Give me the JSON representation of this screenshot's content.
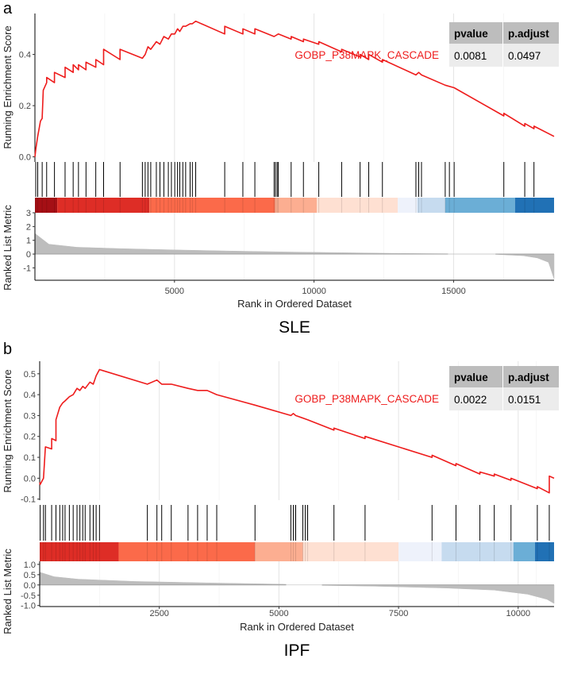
{
  "chart_data": [
    {
      "type": "line",
      "panel_label": "a",
      "title": "SLE",
      "gene_set": "GOBP_P38MAPK_CASCADE",
      "xlabel": "Rank in Ordered Dataset",
      "ylabel_top": "Running Enrichment Score",
      "ylabel_bottom": "Ranked List Metric",
      "xlim": [
        0,
        18600
      ],
      "x_ticks": [
        5000,
        10000,
        15000
      ],
      "x_tick_labels": [
        "5000",
        "10000",
        "15000"
      ],
      "es_ylim": [
        -0.02,
        0.56
      ],
      "es_ticks": [
        0.0,
        0.2,
        0.4
      ],
      "es_tick_labels": [
        "0.0",
        "0.2",
        "0.4"
      ],
      "metric_ylim": [
        -1.9,
        3.0
      ],
      "metric_ticks": [
        3,
        2,
        1,
        0,
        -1
      ],
      "metric_tick_labels": [
        "3",
        "2",
        "1",
        "0",
        "-1"
      ],
      "table": {
        "headers": [
          "pvalue",
          "p.adjust"
        ],
        "values": [
          "0.0081",
          "0.0497"
        ]
      },
      "line_color": "#ee1c1c",
      "hit_ranks": [
        30,
        100,
        260,
        420,
        700,
        1080,
        1370,
        1560,
        1830,
        2180,
        2460,
        3050,
        3850,
        3950,
        4050,
        4150,
        4350,
        4480,
        4620,
        4780,
        4890,
        5010,
        5110,
        5190,
        5300,
        5400,
        5560,
        5640,
        5760,
        6800,
        7450,
        7880,
        8570,
        8620,
        8680,
        8720,
        9180,
        9620,
        10170,
        10990,
        11650,
        11960,
        12450,
        13650,
        13750,
        13850,
        14700,
        14850,
        15020,
        16800,
        17550,
        17880
      ],
      "es_curve": [
        [
          0,
          0.0
        ],
        [
          30,
          0.03
        ],
        [
          100,
          0.08
        ],
        [
          200,
          0.14
        ],
        [
          260,
          0.15
        ],
        [
          300,
          0.26
        ],
        [
          420,
          0.29
        ],
        [
          420,
          0.31
        ],
        [
          700,
          0.29
        ],
        [
          700,
          0.33
        ],
        [
          1080,
          0.31
        ],
        [
          1080,
          0.35
        ],
        [
          1370,
          0.33
        ],
        [
          1370,
          0.36
        ],
        [
          1560,
          0.34
        ],
        [
          1560,
          0.36
        ],
        [
          1830,
          0.34
        ],
        [
          1830,
          0.37
        ],
        [
          2180,
          0.35
        ],
        [
          2180,
          0.38
        ],
        [
          2460,
          0.36
        ],
        [
          2460,
          0.42
        ],
        [
          3050,
          0.38
        ],
        [
          3050,
          0.42
        ],
        [
          3850,
          0.385
        ],
        [
          3950,
          0.4
        ],
        [
          4050,
          0.43
        ],
        [
          4150,
          0.42
        ],
        [
          4350,
          0.45
        ],
        [
          4480,
          0.44
        ],
        [
          4620,
          0.47
        ],
        [
          4780,
          0.46
        ],
        [
          4890,
          0.48
        ],
        [
          5010,
          0.48
        ],
        [
          5110,
          0.5
        ],
        [
          5190,
          0.49
        ],
        [
          5300,
          0.51
        ],
        [
          5400,
          0.51
        ],
        [
          5560,
          0.52
        ],
        [
          5640,
          0.52
        ],
        [
          5760,
          0.53
        ],
        [
          6800,
          0.48
        ],
        [
          6800,
          0.51
        ],
        [
          7450,
          0.48
        ],
        [
          7450,
          0.5
        ],
        [
          7880,
          0.48
        ],
        [
          7880,
          0.5
        ],
        [
          8570,
          0.47
        ],
        [
          8720,
          0.48
        ],
        [
          9180,
          0.46
        ],
        [
          9180,
          0.47
        ],
        [
          9620,
          0.45
        ],
        [
          9620,
          0.46
        ],
        [
          10170,
          0.44
        ],
        [
          10170,
          0.45
        ],
        [
          10990,
          0.41
        ],
        [
          10990,
          0.42
        ],
        [
          11650,
          0.39
        ],
        [
          11650,
          0.4
        ],
        [
          11960,
          0.38
        ],
        [
          11960,
          0.4
        ],
        [
          12450,
          0.37
        ],
        [
          12450,
          0.38
        ],
        [
          13650,
          0.32
        ],
        [
          13750,
          0.33
        ],
        [
          13850,
          0.32
        ],
        [
          14700,
          0.28
        ],
        [
          15020,
          0.27
        ],
        [
          16800,
          0.16
        ],
        [
          16800,
          0.17
        ],
        [
          17550,
          0.12
        ],
        [
          17550,
          0.13
        ],
        [
          17880,
          0.11
        ],
        [
          17880,
          0.12
        ],
        [
          18600,
          0.08
        ]
      ],
      "metric_curve": [
        [
          0,
          1.5
        ],
        [
          500,
          0.72
        ],
        [
          1500,
          0.5
        ],
        [
          3000,
          0.4
        ],
        [
          5000,
          0.3
        ],
        [
          7000,
          0.22
        ],
        [
          9000,
          0.15
        ],
        [
          11000,
          0.1
        ],
        [
          13000,
          0.05
        ],
        [
          14800,
          0.02
        ],
        [
          14800,
          0.0
        ],
        [
          16500,
          0.0
        ],
        [
          16500,
          -0.02
        ],
        [
          17500,
          -0.12
        ],
        [
          18000,
          -0.28
        ],
        [
          18400,
          -0.6
        ],
        [
          18600,
          -1.8
        ]
      ],
      "metric_gap": [
        14800,
        16500
      ],
      "color_bands": [
        {
          "start": 0,
          "end": 800,
          "color": "#a50f15"
        },
        {
          "start": 800,
          "end": 4100,
          "color": "#de2d26"
        },
        {
          "start": 4100,
          "end": 8600,
          "color": "#fb6a4a"
        },
        {
          "start": 8600,
          "end": 10100,
          "color": "#fcae91"
        },
        {
          "start": 10100,
          "end": 13000,
          "color": "#fee0d2"
        },
        {
          "start": 13000,
          "end": 13700,
          "color": "#eef2fb"
        },
        {
          "start": 13700,
          "end": 14700,
          "color": "#c6dbef"
        },
        {
          "start": 14700,
          "end": 17200,
          "color": "#6baed6"
        },
        {
          "start": 17200,
          "end": 18600,
          "color": "#2171b5"
        }
      ]
    },
    {
      "type": "line",
      "panel_label": "b",
      "title": "IPF",
      "gene_set": "GOBP_P38MAPK_CASCADE",
      "xlabel": "Rank in Ordered Dataset",
      "ylabel_top": "Running Enrichment Score",
      "ylabel_bottom": "Ranked List Metric",
      "xlim": [
        0,
        10750
      ],
      "x_ticks": [
        2500,
        5000,
        7500,
        10000
      ],
      "x_tick_labels": [
        "2500",
        "5000",
        "7500",
        "10000"
      ],
      "es_ylim": [
        -0.105,
        0.56
      ],
      "es_ticks": [
        0.5,
        0.4,
        0.3,
        0.2,
        0.1,
        0.0,
        -0.1
      ],
      "es_tick_labels": [
        "0.5",
        "0.4",
        "0.3",
        "0.2",
        "0.1",
        "0.0",
        "-0.1"
      ],
      "metric_ylim": [
        -1.05,
        1.15
      ],
      "metric_ticks": [
        1.0,
        0.5,
        0.0,
        -0.5,
        -1.0
      ],
      "metric_tick_labels": [
        "1.0",
        "0.5",
        "0.0",
        "-0.5",
        "-1.0"
      ],
      "table": {
        "headers": [
          "pvalue",
          "p.adjust"
        ],
        "values": [
          "0.0022",
          "0.0151"
        ]
      },
      "line_color": "#ee1c1c",
      "hit_ranks": [
        10,
        80,
        120,
        250,
        340,
        420,
        480,
        530,
        620,
        700,
        780,
        840,
        900,
        950,
        1050,
        1120,
        1180,
        1250,
        2250,
        2450,
        2550,
        2750,
        3100,
        3300,
        3500,
        3700,
        4500,
        5250,
        5300,
        5350,
        5500,
        5550,
        5600,
        6150,
        6800,
        8200,
        8700,
        9200,
        9500,
        9850,
        10400,
        10650
      ],
      "es_curve": [
        [
          0,
          -0.02
        ],
        [
          10,
          -0.03
        ],
        [
          80,
          0.0
        ],
        [
          120,
          0.15
        ],
        [
          250,
          0.14
        ],
        [
          250,
          0.19
        ],
        [
          340,
          0.18
        ],
        [
          340,
          0.28
        ],
        [
          420,
          0.34
        ],
        [
          480,
          0.36
        ],
        [
          530,
          0.37
        ],
        [
          620,
          0.39
        ],
        [
          700,
          0.4
        ],
        [
          780,
          0.43
        ],
        [
          840,
          0.42
        ],
        [
          900,
          0.44
        ],
        [
          950,
          0.43
        ],
        [
          1050,
          0.46
        ],
        [
          1120,
          0.45
        ],
        [
          1180,
          0.49
        ],
        [
          1250,
          0.52
        ],
        [
          2250,
          0.45
        ],
        [
          2450,
          0.47
        ],
        [
          2550,
          0.45
        ],
        [
          2750,
          0.45
        ],
        [
          3100,
          0.43
        ],
        [
          3300,
          0.42
        ],
        [
          3500,
          0.42
        ],
        [
          3700,
          0.4
        ],
        [
          4500,
          0.35
        ],
        [
          5250,
          0.3
        ],
        [
          5300,
          0.31
        ],
        [
          5350,
          0.3
        ],
        [
          5600,
          0.28
        ],
        [
          6150,
          0.23
        ],
        [
          6150,
          0.24
        ],
        [
          6800,
          0.19
        ],
        [
          6800,
          0.2
        ],
        [
          8200,
          0.1
        ],
        [
          8200,
          0.11
        ],
        [
          8700,
          0.06
        ],
        [
          8700,
          0.07
        ],
        [
          9200,
          0.02
        ],
        [
          9200,
          0.03
        ],
        [
          9500,
          0.01
        ],
        [
          9500,
          0.02
        ],
        [
          9850,
          -0.01
        ],
        [
          9850,
          0.0
        ],
        [
          10400,
          -0.05
        ],
        [
          10400,
          -0.04
        ],
        [
          10650,
          -0.07
        ],
        [
          10650,
          0.01
        ],
        [
          10750,
          0.0
        ]
      ],
      "metric_curve": [
        [
          0,
          0.62
        ],
        [
          300,
          0.4
        ],
        [
          800,
          0.28
        ],
        [
          2000,
          0.17
        ],
        [
          3500,
          0.1
        ],
        [
          5000,
          0.04
        ],
        [
          5150,
          0.03
        ],
        [
          5150,
          0.0
        ],
        [
          5900,
          0.0
        ],
        [
          5900,
          -0.02
        ],
        [
          7000,
          -0.06
        ],
        [
          8500,
          -0.15
        ],
        [
          9500,
          -0.25
        ],
        [
          10200,
          -0.45
        ],
        [
          10600,
          -0.7
        ],
        [
          10750,
          -0.9
        ]
      ],
      "metric_gap": [
        5150,
        5900
      ],
      "color_bands": [
        {
          "start": 0,
          "end": 1650,
          "color": "#de2d26"
        },
        {
          "start": 1650,
          "end": 4500,
          "color": "#fb6a4a"
        },
        {
          "start": 4500,
          "end": 5500,
          "color": "#fcae91"
        },
        {
          "start": 5500,
          "end": 7500,
          "color": "#fee0d2"
        },
        {
          "start": 7500,
          "end": 8400,
          "color": "#eef2fb"
        },
        {
          "start": 8400,
          "end": 9900,
          "color": "#c6dbef"
        },
        {
          "start": 9900,
          "end": 10350,
          "color": "#6baed6"
        },
        {
          "start": 10350,
          "end": 10750,
          "color": "#2171b5"
        }
      ]
    }
  ]
}
